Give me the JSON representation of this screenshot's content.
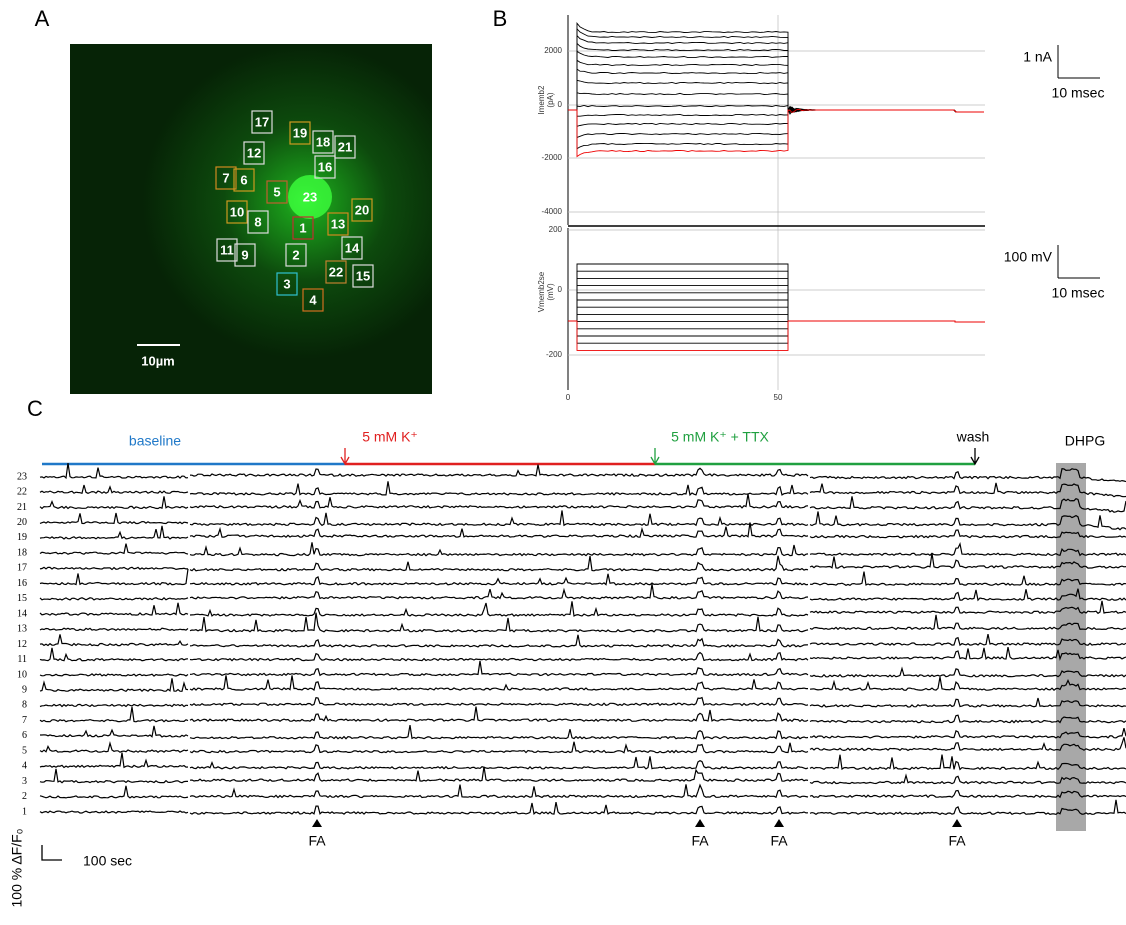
{
  "panels": {
    "a": {
      "label": "A",
      "rois": [
        "17",
        "19",
        "18",
        "21",
        "12",
        "16",
        "7",
        "6",
        "5",
        "23",
        "20",
        "10",
        "8",
        "1",
        "13",
        "14",
        "11",
        "9",
        "2",
        "22",
        "15",
        "3",
        "4"
      ],
      "scale_bar": "10µm"
    },
    "b": {
      "label": "B",
      "current": {
        "y_label": [
          "Imemb2",
          "(pA)"
        ],
        "yticks": [
          "2000",
          "0",
          "-2000",
          "-4000"
        ],
        "scale_bar": "1 nA",
        "scale_time": "10 msec"
      },
      "voltage": {
        "y_label": [
          "Vmemb2se",
          "(mV)"
        ],
        "yticks": [
          "200",
          "0",
          "-200"
        ],
        "xticks": [
          "0",
          "50"
        ],
        "scale_bar": "100 mV",
        "scale_time": "10 msec"
      }
    },
    "c": {
      "label": "C",
      "conditions": [
        "baseline",
        "5 mM K⁺",
        "5 mM K⁺ + TTX",
        "wash",
        "DHPG"
      ],
      "traces": [
        "23",
        "22",
        "21",
        "20",
        "19",
        "18",
        "17",
        "16",
        "15",
        "14",
        "13",
        "12",
        "11",
        "10",
        "9",
        "8",
        "7",
        "6",
        "5",
        "4",
        "3",
        "2",
        "1"
      ],
      "events": [
        "FA",
        "FA",
        "FA",
        "FA"
      ],
      "y_scale": "100 % ΔF/F₀",
      "x_scale": "100 sec"
    }
  }
}
